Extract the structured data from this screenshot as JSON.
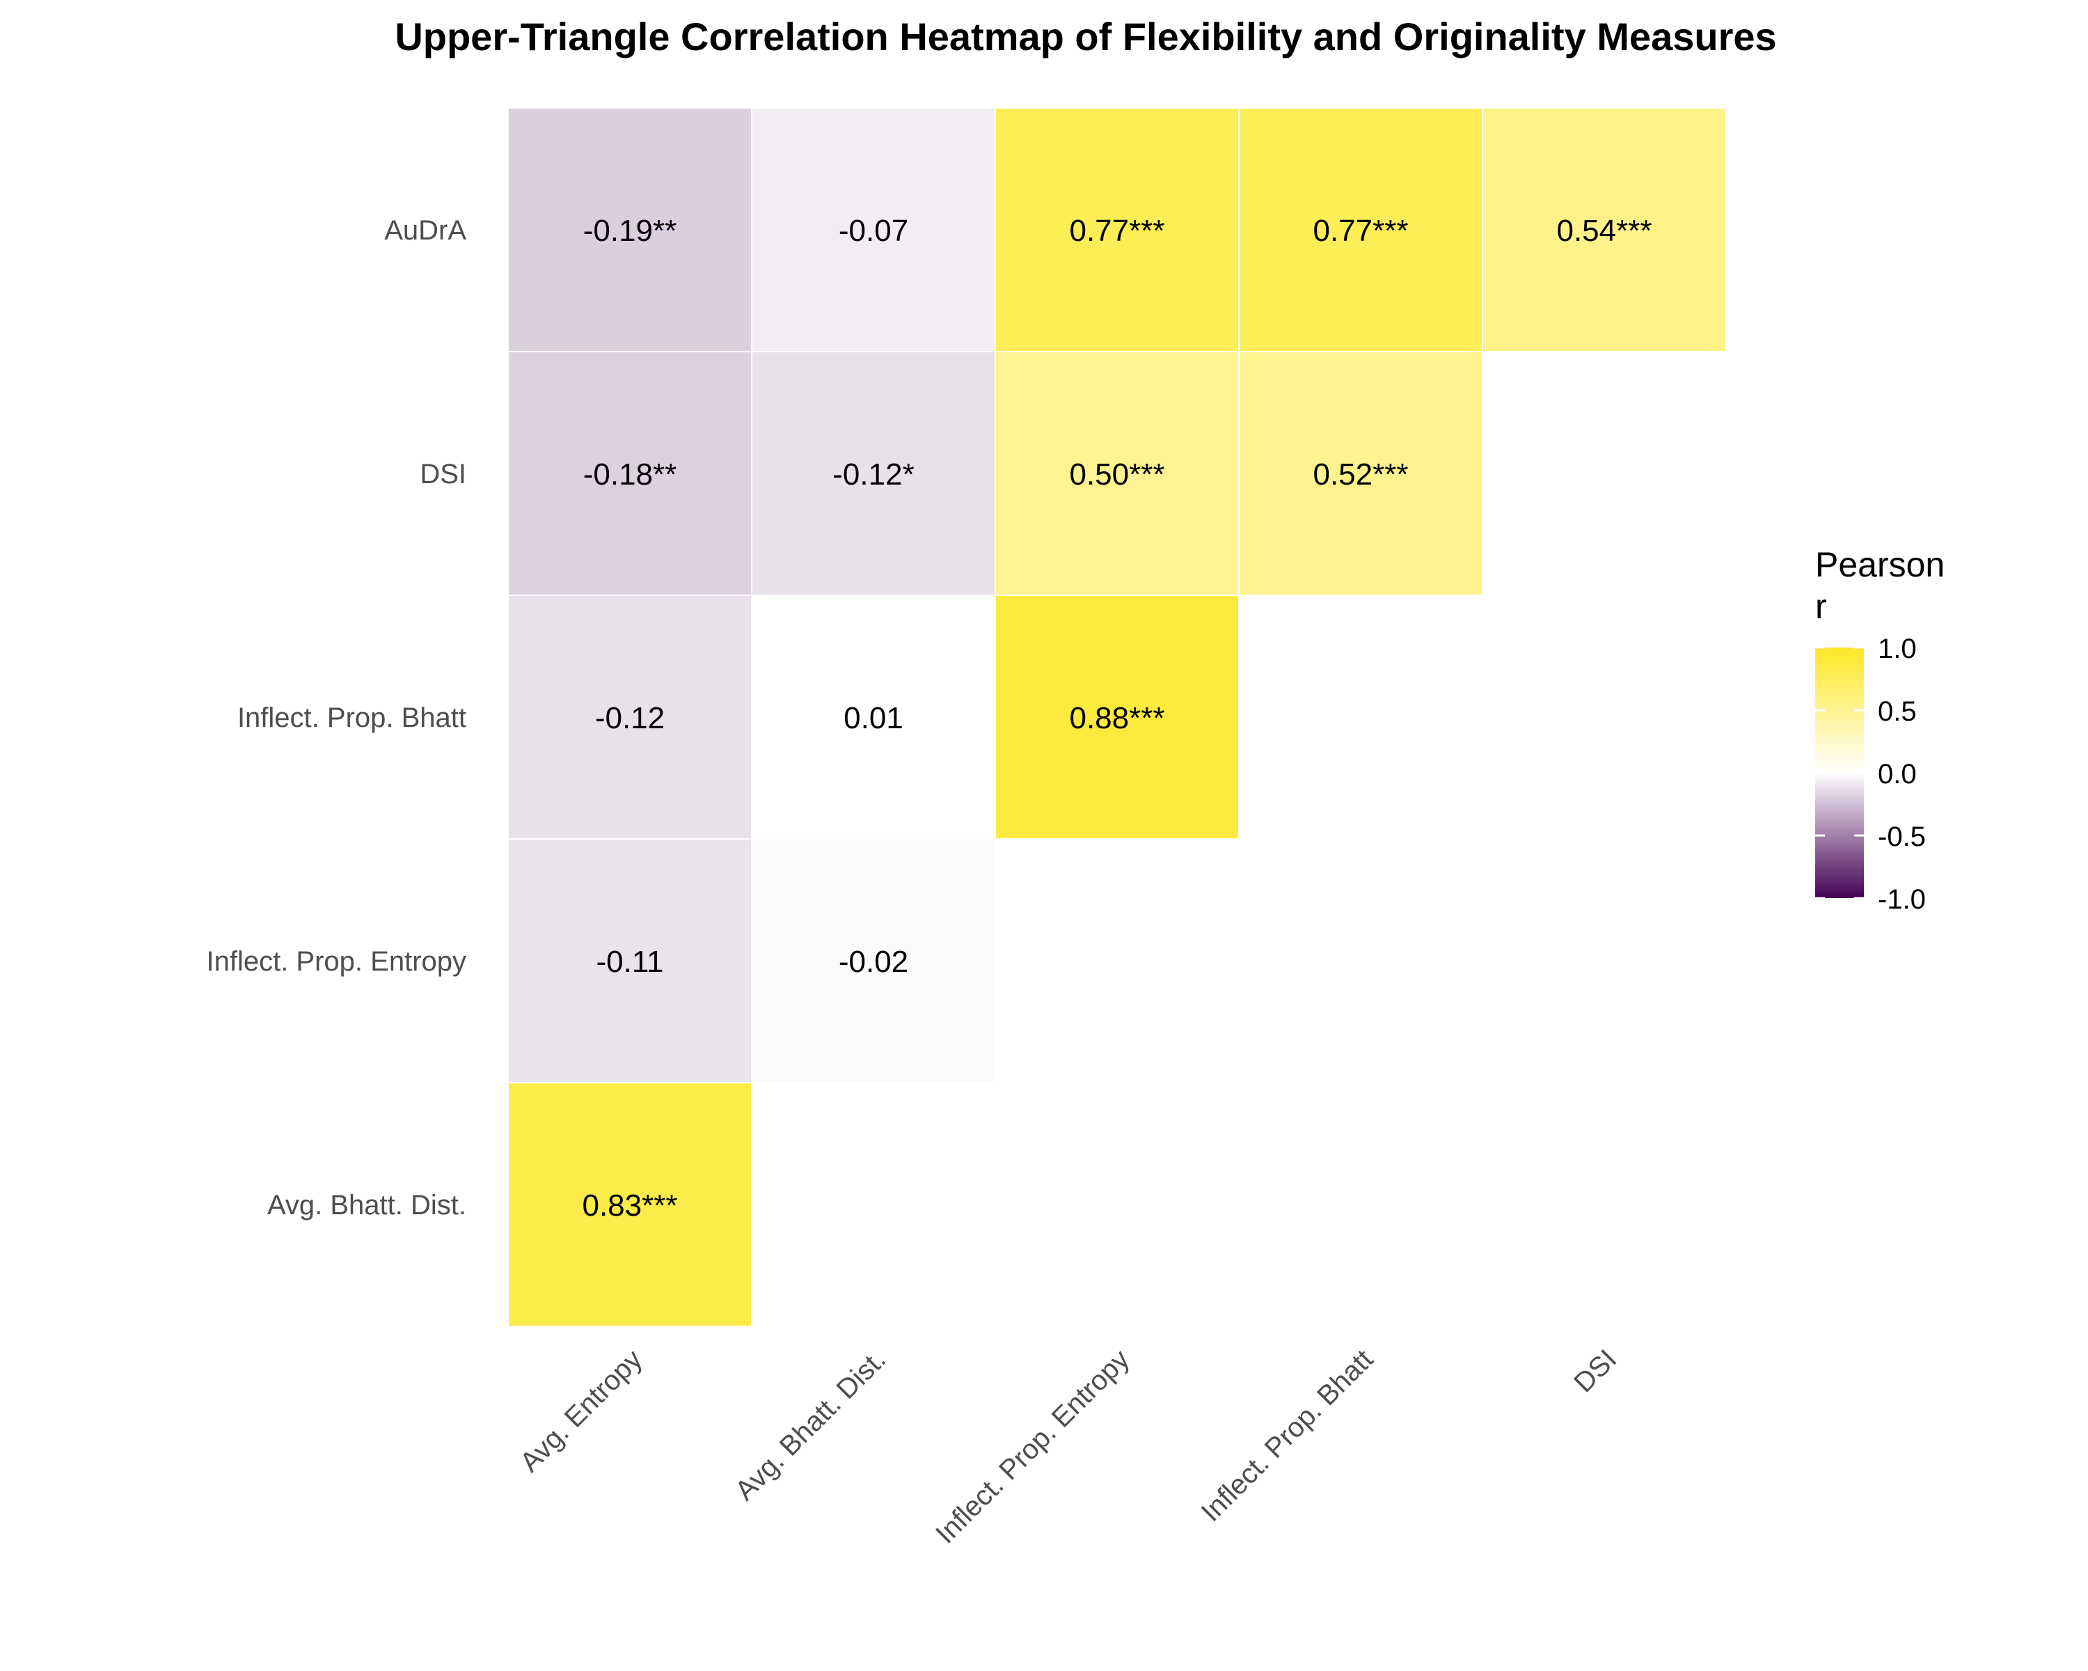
{
  "chart_data": {
    "type": "heatmap",
    "title": "Upper-Triangle Correlation Heatmap of Flexibility and Originality Measures",
    "x_categories": [
      "Avg. Entropy",
      "Avg. Bhatt. Dist.",
      "Inflect. Prop. Entropy",
      "Inflect. Prop. Bhatt",
      "DSI"
    ],
    "y_categories": [
      "AuDrA",
      "DSI",
      "Inflect. Prop. Bhatt",
      "Inflect. Prop. Entropy",
      "Avg. Bhatt. Dist."
    ],
    "cells": [
      {
        "x": "Avg. Entropy",
        "y": "AuDrA",
        "value": -0.19,
        "label": "-0.19**"
      },
      {
        "x": "Avg. Bhatt. Dist.",
        "y": "AuDrA",
        "value": -0.07,
        "label": "-0.07"
      },
      {
        "x": "Inflect. Prop. Entropy",
        "y": "AuDrA",
        "value": 0.77,
        "label": "0.77***"
      },
      {
        "x": "Inflect. Prop. Bhatt",
        "y": "AuDrA",
        "value": 0.77,
        "label": "0.77***"
      },
      {
        "x": "DSI",
        "y": "AuDrA",
        "value": 0.54,
        "label": "0.54***"
      },
      {
        "x": "Avg. Entropy",
        "y": "DSI",
        "value": -0.18,
        "label": "-0.18**"
      },
      {
        "x": "Avg. Bhatt. Dist.",
        "y": "DSI",
        "value": -0.12,
        "label": "-0.12*"
      },
      {
        "x": "Inflect. Prop. Entropy",
        "y": "DSI",
        "value": 0.5,
        "label": "0.50***"
      },
      {
        "x": "Inflect. Prop. Bhatt",
        "y": "DSI",
        "value": 0.52,
        "label": "0.52***"
      },
      {
        "x": "Avg. Entropy",
        "y": "Inflect. Prop. Bhatt",
        "value": -0.12,
        "label": "-0.12"
      },
      {
        "x": "Avg. Bhatt. Dist.",
        "y": "Inflect. Prop. Bhatt",
        "value": 0.01,
        "label": "0.01"
      },
      {
        "x": "Inflect. Prop. Entropy",
        "y": "Inflect. Prop. Bhatt",
        "value": 0.88,
        "label": "0.88***"
      },
      {
        "x": "Avg. Entropy",
        "y": "Inflect. Prop. Entropy",
        "value": -0.11,
        "label": "-0.11"
      },
      {
        "x": "Avg. Bhatt. Dist.",
        "y": "Inflect. Prop. Entropy",
        "value": -0.02,
        "label": "-0.02"
      },
      {
        "x": "Avg. Entropy",
        "y": "Avg. Bhatt. Dist.",
        "value": 0.83,
        "label": "0.83***"
      }
    ],
    "legend": {
      "title_lines": [
        "Pearson",
        "r"
      ],
      "limits": [
        -1.0,
        1.0
      ],
      "ticks": [
        1.0,
        0.5,
        0.0,
        -0.5,
        -1.0
      ],
      "tick_labels": [
        "1.0",
        "0.5",
        "0.0",
        "-0.5",
        "-1.0"
      ],
      "placement": "right"
    },
    "colors": {
      "low": "#440154",
      "mid": "#ffffff",
      "high": "#fde725"
    },
    "grid": false
  }
}
